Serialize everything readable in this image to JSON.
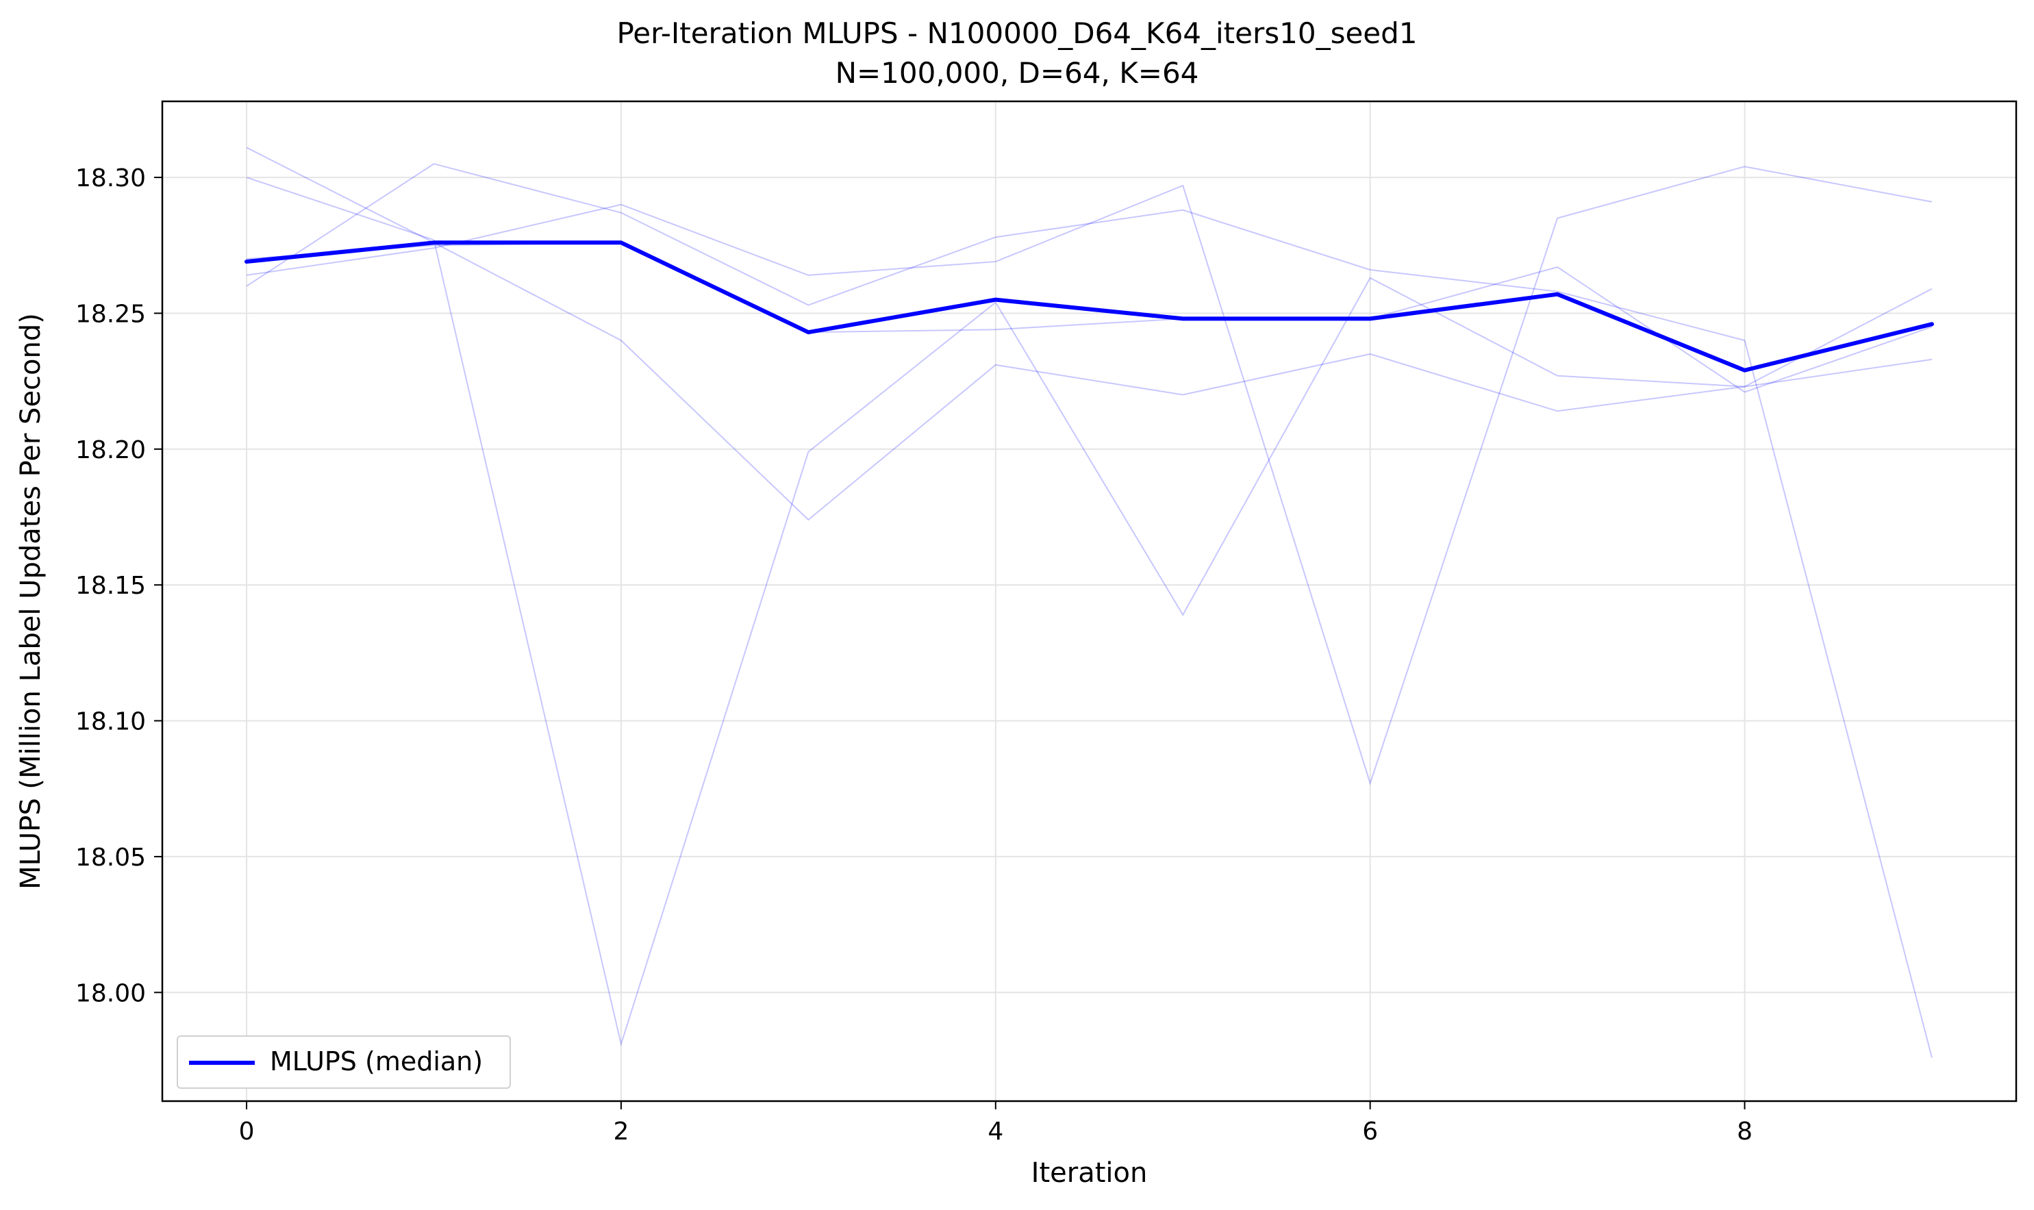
{
  "chart_data": {
    "type": "line",
    "title": "Per-Iteration MLUPS - N100000_D64_K64_iters10_seed1",
    "subtitle": "N=100,000, D=64, K=64",
    "xlabel": "Iteration",
    "ylabel": "MLUPS (Million Label Updates Per Second)",
    "x": [
      0,
      1,
      2,
      3,
      4,
      5,
      6,
      7,
      8,
      9
    ],
    "xlim": [
      -0.45,
      9.45
    ],
    "ylim": [
      17.96,
      18.328
    ],
    "xticks": [
      "0",
      "2",
      "4",
      "6",
      "8"
    ],
    "yticks": [
      "18.00",
      "18.05",
      "18.10",
      "18.15",
      "18.20",
      "18.25",
      "18.30"
    ],
    "grid": true,
    "legend_position": "lower-left",
    "series": [
      {
        "name": "MLUPS (median)",
        "color": "#0000ff",
        "role": "median",
        "values": [
          18.269,
          18.276,
          18.276,
          18.243,
          18.255,
          18.248,
          18.248,
          18.257,
          18.229,
          18.246
        ]
      },
      {
        "color": "#0000ff",
        "role": "run",
        "values": [
          18.311,
          18.276,
          18.24,
          18.174,
          18.231,
          18.22,
          18.235,
          18.214,
          18.223,
          18.259
        ]
      },
      {
        "color": "#0000ff",
        "role": "run",
        "values": [
          18.3,
          18.277,
          17.981,
          18.199,
          18.254,
          18.139,
          18.263,
          18.227,
          18.223,
          18.233
        ]
      },
      {
        "color": "#0000ff",
        "role": "run",
        "values": [
          18.264,
          18.274,
          18.29,
          18.264,
          18.269,
          18.297,
          18.077,
          18.285,
          18.304,
          18.291
        ]
      },
      {
        "color": "#0000ff",
        "role": "run",
        "values": [
          18.26,
          18.305,
          18.287,
          18.253,
          18.278,
          18.288,
          18.266,
          18.258,
          18.24,
          17.976
        ]
      },
      {
        "color": "#0000ff",
        "role": "run",
        "values": [
          18.27,
          18.275,
          18.276,
          18.243,
          18.244,
          18.248,
          18.248,
          18.267,
          18.221,
          18.245
        ]
      }
    ]
  }
}
